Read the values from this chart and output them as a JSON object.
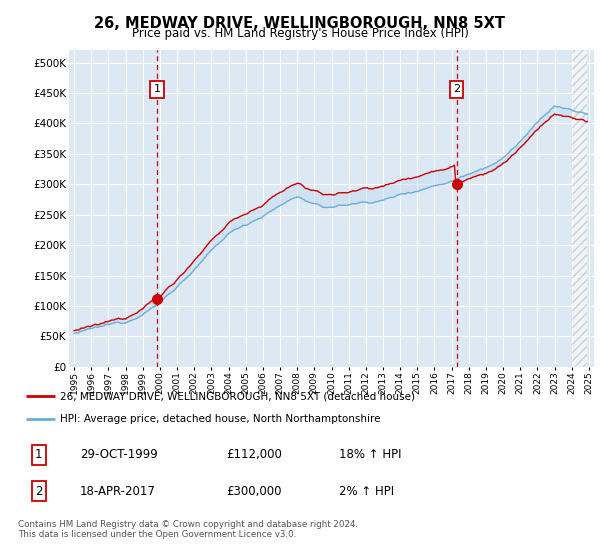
{
  "title": "26, MEDWAY DRIVE, WELLINGBOROUGH, NN8 5XT",
  "subtitle": "Price paid vs. HM Land Registry's House Price Index (HPI)",
  "plot_bg_color": "#dce9f5",
  "ylim": [
    0,
    520000
  ],
  "yticks": [
    0,
    50000,
    100000,
    150000,
    200000,
    250000,
    300000,
    350000,
    400000,
    450000,
    500000
  ],
  "ytick_labels": [
    "£0",
    "£50K",
    "£100K",
    "£150K",
    "£200K",
    "£250K",
    "£300K",
    "£350K",
    "£400K",
    "£450K",
    "£500K"
  ],
  "sale1_date_x": 1999.83,
  "sale1_price": 112000,
  "sale1_label": "1",
  "sale2_date_x": 2017.29,
  "sale2_price": 300000,
  "sale2_label": "2",
  "legend_line1": "26, MEDWAY DRIVE, WELLINGBOROUGH, NN8 5XT (detached house)",
  "legend_line2": "HPI: Average price, detached house, North Northamptonshire",
  "table_row1": [
    "1",
    "29-OCT-1999",
    "£112,000",
    "18% ↑ HPI"
  ],
  "table_row2": [
    "2",
    "18-APR-2017",
    "£300,000",
    "2% ↑ HPI"
  ],
  "footer": "Contains HM Land Registry data © Crown copyright and database right 2024.\nThis data is licensed under the Open Government Licence v3.0.",
  "hpi_color": "#6baed6",
  "price_color": "#cc0000",
  "vline_color": "#cc0000",
  "xlim_left": 1994.7,
  "xlim_right": 2025.3,
  "hatch_start": 2024.0
}
